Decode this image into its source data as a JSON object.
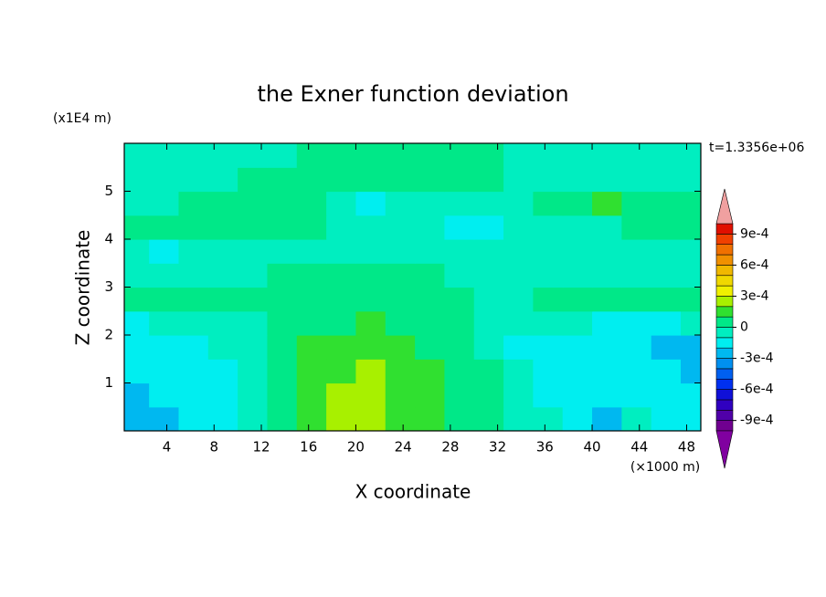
{
  "chart_data": {
    "type": "contour",
    "title": "the Exner function deviation",
    "xlabel": "X coordinate",
    "ylabel": "Z coordinate",
    "xunit": "(×1000 m)",
    "yunit": "(x1E4 m)",
    "annotation": "t=1.3356e+06",
    "xlim": [
      0.4,
      49.2
    ],
    "ylim": [
      0,
      6
    ],
    "xticks": [
      4,
      8,
      12,
      16,
      20,
      24,
      28,
      32,
      36,
      40,
      44,
      48
    ],
    "yticks": [
      1,
      2,
      3,
      4,
      5
    ],
    "x": [
      1.25,
      3.75,
      6.25,
      8.75,
      11.25,
      13.75,
      16.25,
      18.75,
      21.25,
      23.75,
      26.25,
      28.75,
      31.25,
      33.75,
      36.25,
      38.75,
      41.25,
      43.75,
      46.25,
      48.75
    ],
    "y": [
      0.25,
      0.75,
      1.25,
      1.75,
      2.25,
      2.75,
      3.25,
      3.75,
      4.25,
      4.75,
      5.25,
      5.75
    ],
    "z": [
      [
        -0.00025,
        -0.00025,
        -0.00015,
        -0.00015,
        -5e-05,
        5e-05,
        0.00015,
        0.00025,
        0.00025,
        0.00015,
        0.00015,
        5e-05,
        5e-05,
        -5e-05,
        -5e-05,
        -0.00015,
        -0.00025,
        -5e-05,
        -0.00015,
        -0.00015
      ],
      [
        -0.00025,
        -0.00015,
        -0.00015,
        -0.00015,
        -5e-05,
        5e-05,
        0.00015,
        0.00025,
        0.00025,
        0.00015,
        0.00015,
        5e-05,
        5e-05,
        -5e-05,
        -0.00015,
        -0.00015,
        -0.00015,
        -0.00015,
        -0.00015,
        -0.00015
      ],
      [
        -0.00015,
        -0.00015,
        -0.00015,
        -0.00015,
        -5e-05,
        5e-05,
        0.00015,
        0.00015,
        0.00025,
        0.00015,
        0.00015,
        5e-05,
        5e-05,
        -5e-05,
        -0.00015,
        -0.00015,
        -0.00015,
        -0.00015,
        -0.00015,
        -0.00025
      ],
      [
        -0.00015,
        -0.00015,
        -0.00015,
        -5e-05,
        -5e-05,
        5e-05,
        0.00015,
        0.00015,
        0.00015,
        0.00015,
        5e-05,
        5e-05,
        -5e-05,
        -0.00015,
        -0.00015,
        -0.00015,
        -0.00015,
        -0.00015,
        -0.00025,
        -0.00025
      ],
      [
        -0.00015,
        -5e-05,
        -5e-05,
        -5e-05,
        -5e-05,
        5e-05,
        5e-05,
        5e-05,
        0.00015,
        5e-05,
        5e-05,
        5e-05,
        -5e-05,
        -5e-05,
        -5e-05,
        -5e-05,
        -0.00015,
        -0.00015,
        -0.00015,
        -5e-05
      ],
      [
        5e-05,
        5e-05,
        5e-05,
        5e-05,
        5e-05,
        5e-05,
        5e-05,
        5e-05,
        5e-05,
        5e-05,
        5e-05,
        5e-05,
        -5e-05,
        -5e-05,
        5e-05,
        5e-05,
        5e-05,
        5e-05,
        5e-05,
        5e-05
      ],
      [
        -5e-05,
        -5e-05,
        -5e-05,
        -5e-05,
        -5e-05,
        5e-05,
        5e-05,
        5e-05,
        5e-05,
        5e-05,
        5e-05,
        -5e-05,
        -5e-05,
        -5e-05,
        -5e-05,
        -5e-05,
        -5e-05,
        -5e-05,
        -5e-05,
        -5e-05
      ],
      [
        -5e-05,
        -0.00015,
        -5e-05,
        -5e-05,
        -5e-05,
        -5e-05,
        -5e-05,
        -5e-05,
        -5e-05,
        -5e-05,
        -5e-05,
        -5e-05,
        -5e-05,
        -5e-05,
        -5e-05,
        -5e-05,
        -5e-05,
        -5e-05,
        -5e-05,
        -5e-05
      ],
      [
        5e-05,
        5e-05,
        5e-05,
        5e-05,
        5e-05,
        5e-05,
        5e-05,
        -5e-05,
        -5e-05,
        -5e-05,
        -5e-05,
        -0.00015,
        -0.00015,
        -5e-05,
        -5e-05,
        -5e-05,
        -5e-05,
        5e-05,
        5e-05,
        5e-05
      ],
      [
        -5e-05,
        -5e-05,
        5e-05,
        5e-05,
        5e-05,
        5e-05,
        5e-05,
        -5e-05,
        -0.00015,
        -5e-05,
        -5e-05,
        -5e-05,
        -5e-05,
        -5e-05,
        5e-05,
        5e-05,
        0.00015,
        5e-05,
        5e-05,
        5e-05
      ],
      [
        -5e-05,
        -5e-05,
        -5e-05,
        -5e-05,
        5e-05,
        5e-05,
        5e-05,
        5e-05,
        5e-05,
        5e-05,
        5e-05,
        5e-05,
        5e-05,
        -5e-05,
        -5e-05,
        -5e-05,
        -5e-05,
        -5e-05,
        -5e-05,
        -5e-05
      ],
      [
        -5e-05,
        -5e-05,
        -5e-05,
        -5e-05,
        -5e-05,
        -5e-05,
        5e-05,
        5e-05,
        5e-05,
        5e-05,
        5e-05,
        5e-05,
        5e-05,
        -5e-05,
        -5e-05,
        -5e-05,
        -5e-05,
        -5e-05,
        -5e-05,
        -5e-05
      ]
    ],
    "levels": [
      -0.001,
      -0.0009,
      -0.0008,
      -0.0007,
      -0.0006,
      -0.0005,
      -0.0004,
      -0.0003,
      -0.0002,
      -0.0001,
      0,
      0.0001,
      0.0002,
      0.0003,
      0.0004,
      0.0005,
      0.0006,
      0.0007,
      0.0008,
      0.0009,
      0.001
    ],
    "colors": [
      "#8000a0",
      "#700090",
      "#5000a8",
      "#3000c0",
      "#1010d8",
      "#0030f0",
      "#0060f0",
      "#0090f0",
      "#00b8f0",
      "#00eef0",
      "#00eec0",
      "#00e888",
      "#30e030",
      "#a8f000",
      "#f0f000",
      "#f0d800",
      "#f0b800",
      "#f09000",
      "#f07000",
      "#f04000",
      "#e01000",
      "#f0a0a0"
    ],
    "cticks": [
      {
        "value": -0.0009,
        "label": "-9e-4"
      },
      {
        "value": -0.0006,
        "label": "-6e-4"
      },
      {
        "value": -0.0003,
        "label": "-3e-4"
      },
      0,
      {
        "value": 0.0003,
        "label": "3e-4"
      },
      {
        "value": 0.0006,
        "label": "6e-4"
      },
      {
        "value": 0.0009,
        "label": "9e-4"
      }
    ]
  }
}
